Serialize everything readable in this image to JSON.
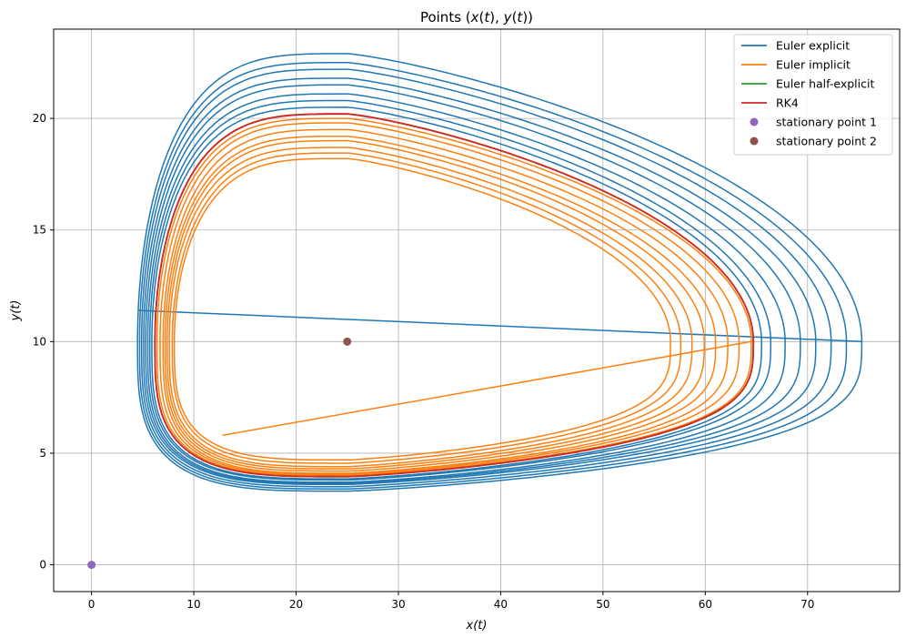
{
  "chart_data": {
    "type": "line",
    "title": "Points (x(t), y(t))",
    "xlabel": "x(t)",
    "ylabel": "y(t)",
    "xlim": [
      -3.7,
      79.0
    ],
    "ylim": [
      -1.2,
      24.0
    ],
    "xticks": [
      0,
      10,
      20,
      30,
      40,
      50,
      60,
      70
    ],
    "yticks": [
      0,
      5,
      10,
      15,
      20
    ],
    "grid": true,
    "legend_position": "top-right",
    "series": [
      {
        "name": "Euler explicit",
        "color": "#1f77b4",
        "kind": "spiral",
        "loops": [
          {
            "xmin": 4.5,
            "xmax": 75.3,
            "ymin": 3.3,
            "ymax": 22.9
          },
          {
            "xmin": 4.7,
            "xmax": 73.8,
            "ymin": 3.4,
            "ymax": 22.5
          },
          {
            "xmin": 4.9,
            "xmax": 72.3,
            "ymin": 3.5,
            "ymax": 22.2
          },
          {
            "xmin": 5.1,
            "xmax": 70.8,
            "ymin": 3.6,
            "ymax": 21.8
          },
          {
            "xmin": 5.3,
            "xmax": 69.3,
            "ymin": 3.65,
            "ymax": 21.5
          },
          {
            "xmin": 5.5,
            "xmax": 67.8,
            "ymin": 3.7,
            "ymax": 21.1
          },
          {
            "xmin": 5.7,
            "xmax": 66.4,
            "ymin": 3.8,
            "ymax": 20.8
          },
          {
            "xmin": 5.9,
            "xmax": 65.5,
            "ymin": 3.85,
            "ymax": 20.5
          }
        ],
        "end_point": [
          4.5,
          11.4
        ]
      },
      {
        "name": "Euler implicit",
        "color": "#ff7f0e",
        "kind": "spiral",
        "loops": [
          {
            "xmin": 6.4,
            "xmax": 64.5,
            "ymin": 4.0,
            "ymax": 20.0
          },
          {
            "xmin": 6.7,
            "xmax": 63.3,
            "ymin": 4.05,
            "ymax": 19.8
          },
          {
            "xmin": 7.0,
            "xmax": 62.2,
            "ymin": 4.1,
            "ymax": 19.5
          },
          {
            "xmin": 7.2,
            "xmax": 61.0,
            "ymin": 4.2,
            "ymax": 19.2
          },
          {
            "xmin": 7.4,
            "xmax": 59.9,
            "ymin": 4.3,
            "ymax": 19.0
          },
          {
            "xmin": 7.6,
            "xmax": 58.7,
            "ymin": 4.4,
            "ymax": 18.7
          },
          {
            "xmin": 7.9,
            "xmax": 57.6,
            "ymin": 4.55,
            "ymax": 18.45
          },
          {
            "xmin": 8.1,
            "xmax": 56.6,
            "ymin": 4.7,
            "ymax": 18.2
          }
        ],
        "end_point": [
          12.8,
          5.8
        ]
      },
      {
        "name": "Euler half-explicit",
        "color": "#2ca02c",
        "kind": "closed",
        "loops": [
          {
            "xmin": 6.2,
            "xmax": 64.7,
            "ymin": 3.95,
            "ymax": 20.2
          }
        ]
      },
      {
        "name": "RK4",
        "color": "#d62728",
        "kind": "closed",
        "loops": [
          {
            "xmin": 6.2,
            "xmax": 64.7,
            "ymin": 3.95,
            "ymax": 20.2
          }
        ]
      },
      {
        "name": "stationary point 1",
        "color": "#9467bd",
        "kind": "point",
        "x": 0,
        "y": 0
      },
      {
        "name": "stationary point 2",
        "color": "#8c564b",
        "kind": "point",
        "x": 25,
        "y": 10
      }
    ]
  }
}
